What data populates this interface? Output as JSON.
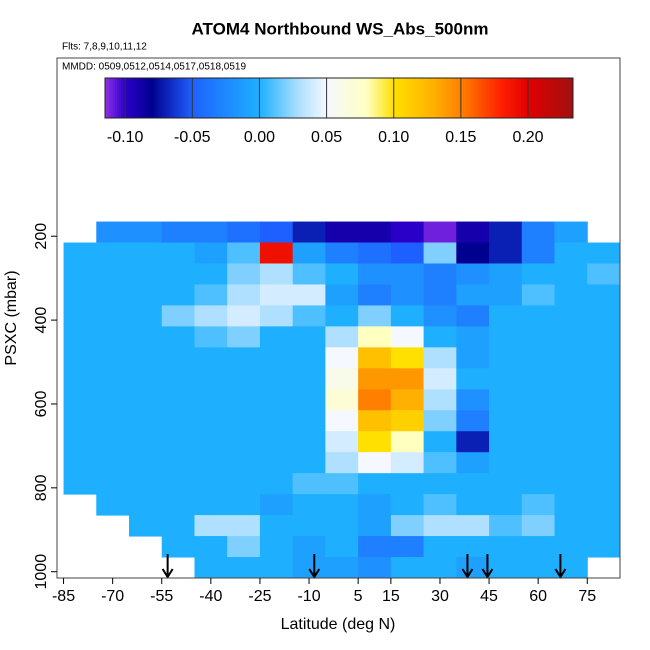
{
  "chart_data": {
    "type": "heatmap",
    "title": "ATOM4 Northbound WS_Abs_500nm",
    "subtitle": "Flts: 7,8,9,10,11,12",
    "annotation": "MMDD: 0509,0512,0514,0517,0518,0519",
    "x_label": "Latitude (deg N)",
    "y_label": "PSXC (mbar)",
    "xlim": [
      -87,
      85
    ],
    "ylim": [
      1015,
      -225
    ],
    "xticks": [
      -85,
      -70,
      -55,
      -40,
      -25,
      -10,
      5,
      15,
      30,
      45,
      60,
      75
    ],
    "yticks": [
      200,
      400,
      600,
      800,
      1000
    ],
    "x": [
      -80,
      -70,
      -60,
      -50,
      -40,
      -30,
      -20,
      -10,
      0,
      10,
      20,
      30,
      40,
      50,
      60,
      70,
      80
    ],
    "y": [
      190,
      240,
      290,
      340,
      390,
      440,
      490,
      540,
      590,
      640,
      690,
      740,
      790,
      840,
      890,
      940,
      990
    ],
    "z": [
      [
        null,
        -0.02,
        -0.02,
        -0.03,
        -0.03,
        -0.04,
        -0.05,
        -0.07,
        -0.09,
        -0.09,
        -0.1,
        -0.11,
        -0.09,
        -0.07,
        -0.03,
        -0.01,
        null
      ],
      [
        0,
        0,
        0,
        0,
        -0.01,
        0.01,
        0.19,
        -0.01,
        -0.03,
        -0.04,
        -0.05,
        0.02,
        -0.08,
        -0.07,
        -0.03,
        0,
        0
      ],
      [
        0,
        0,
        0,
        0,
        0,
        0.02,
        0.03,
        0.01,
        0,
        -0.02,
        -0.02,
        -0.03,
        -0.02,
        -0.01,
        0,
        0,
        0.01
      ],
      [
        0,
        0,
        0,
        0,
        0.01,
        0.03,
        0.04,
        0.04,
        -0.01,
        -0.03,
        -0.02,
        -0.03,
        -0.01,
        -0.01,
        0.01,
        0,
        0
      ],
      [
        0,
        0,
        0,
        0.02,
        0.03,
        0.04,
        0.03,
        0.01,
        0,
        0.02,
        0,
        -0.02,
        -0.03,
        0,
        0,
        0,
        0
      ],
      [
        0,
        0,
        0,
        0,
        0.01,
        0.02,
        0,
        0,
        0.03,
        0.08,
        0.05,
        0,
        -0.01,
        0,
        0,
        0,
        0
      ],
      [
        0,
        0,
        0,
        0,
        0,
        0,
        0,
        0,
        0.05,
        0.12,
        0.1,
        0.03,
        -0.01,
        0,
        0,
        0,
        0
      ],
      [
        0,
        0,
        0,
        0,
        0,
        0,
        0,
        0,
        0.06,
        0.14,
        0.14,
        0.04,
        0,
        0,
        0,
        0,
        0
      ],
      [
        0,
        0,
        0,
        0,
        0,
        0,
        0,
        0,
        0.07,
        0.15,
        0.13,
        0.03,
        -0.02,
        0,
        0,
        0,
        0
      ],
      [
        0,
        0,
        0,
        0,
        0,
        0,
        0,
        0,
        0.05,
        0.12,
        0.11,
        0.02,
        -0.03,
        0,
        0,
        0,
        0
      ],
      [
        0,
        0,
        0,
        0,
        0,
        0,
        0,
        0,
        0.04,
        0.1,
        0.08,
        0,
        -0.07,
        0,
        0,
        0,
        0
      ],
      [
        0,
        0,
        0,
        0,
        0,
        0,
        0,
        0,
        0.03,
        0.05,
        0.04,
        0.01,
        -0.01,
        0,
        0,
        0,
        0
      ],
      [
        0,
        0,
        0,
        0,
        0,
        0,
        0,
        0.01,
        0.01,
        0,
        0,
        0,
        0,
        0,
        0,
        0,
        0
      ],
      [
        null,
        0,
        0,
        0,
        0,
        0,
        -0.01,
        0,
        0,
        -0.01,
        0,
        0.01,
        0,
        0,
        0.01,
        0,
        0
      ],
      [
        null,
        null,
        0,
        0,
        0.03,
        0.03,
        0,
        0,
        0,
        -0.01,
        0.02,
        0.03,
        0.03,
        0.01,
        0.02,
        0,
        0
      ],
      [
        null,
        null,
        null,
        0,
        0,
        0.02,
        0,
        -0.01,
        0,
        -0.03,
        -0.03,
        0,
        0,
        0,
        0,
        0,
        0
      ],
      [
        null,
        null,
        null,
        null,
        0,
        0,
        0,
        -0.01,
        -0.01,
        -0.02,
        0,
        0,
        -0.01,
        0,
        0,
        0,
        null
      ]
    ],
    "colorbar_lim": [
      -0.115,
      0.2335
    ],
    "colorbar_ticks": [
      {
        "value": -0.1,
        "label": "-0.10"
      },
      -0.05,
      {
        "value": 0,
        "label": "0.00"
      },
      0.05,
      {
        "value": 0.1,
        "label": "0.10"
      },
      0.15,
      {
        "value": 0.2,
        "label": "0.20"
      }
    ],
    "colorscale": [
      [
        -0.115,
        "#9030e8"
      ],
      [
        -0.1,
        "#2a00c8"
      ],
      [
        -0.08,
        "#000090"
      ],
      [
        -0.05,
        "#1e60ff"
      ],
      [
        0,
        "#1eb0ff"
      ],
      [
        0.03,
        "#b0e0ff"
      ],
      [
        0.05,
        "#f5f8ff"
      ],
      [
        0.08,
        "#ffffc0"
      ],
      [
        0.1,
        "#ffe000"
      ],
      [
        0.13,
        "#ffb000"
      ],
      [
        0.15,
        "#ff8000"
      ],
      [
        0.18,
        "#ff2000"
      ],
      [
        0.2,
        "#e00000"
      ],
      [
        0.2335,
        "#a01010"
      ]
    ],
    "markers": {
      "x": [
        -53.2,
        -8.4,
        38.4,
        44.5,
        66.8
      ],
      "color": "#000000"
    }
  }
}
